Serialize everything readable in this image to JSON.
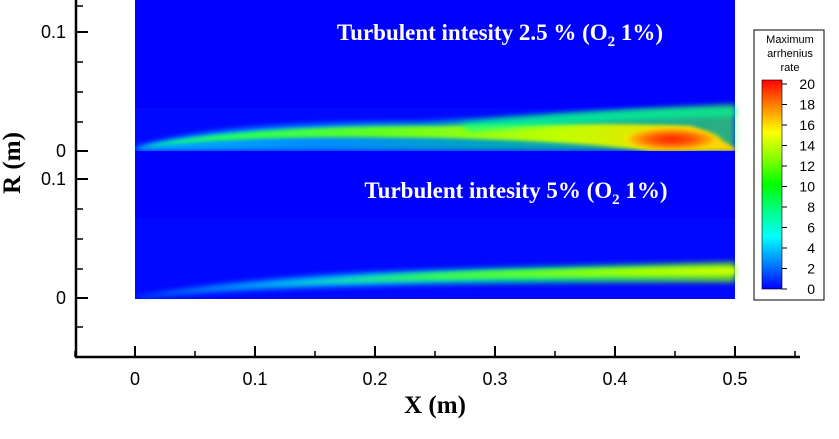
{
  "chart_data": {
    "type": "heatmap",
    "xlabel": "X (m)",
    "ylabel": "R (m)",
    "xlim": [
      -0.05,
      0.55
    ],
    "x_ticks": [
      "0",
      "0.1",
      "0.2",
      "0.3",
      "0.4",
      "0.5"
    ],
    "y_ticks_top_panel": [
      "0.1",
      "0"
    ],
    "y_ticks_bottom_panel": [
      "0.1",
      "0"
    ],
    "colorbar": {
      "title": "Maximum arrhenius rate",
      "title_lines": [
        "Maximum",
        "arrhenius",
        "rate"
      ],
      "range": [
        0,
        20
      ],
      "ticks": [
        "20",
        "18",
        "16",
        "14",
        "12",
        "10",
        "8",
        "6",
        "4",
        "2",
        "0"
      ],
      "colormap": [
        "#0000ff",
        "#0080ff",
        "#00ffff",
        "#00ff80",
        "#00ff00",
        "#80ff00",
        "#ffff00",
        "#ff8000",
        "#ff0000"
      ]
    },
    "panels": [
      {
        "title": "Turbulent intesity 2.5 %  (O",
        "subscript": "2",
        "title_suffix": " 1%)",
        "domain_x": [
          0,
          0.5
        ],
        "domain_r": [
          0,
          0.125
        ],
        "background_value": 0,
        "peak_value": 20,
        "peak_location_x": 0.46
      },
      {
        "title": "Turbulent intesity 5% (O",
        "subscript": "2",
        "title_suffix": " 1%)",
        "domain_x": [
          0,
          0.5
        ],
        "domain_r": [
          0,
          0.1
        ],
        "background_value": 0,
        "peak_value": 9,
        "peak_location_x": 0.5
      }
    ]
  }
}
